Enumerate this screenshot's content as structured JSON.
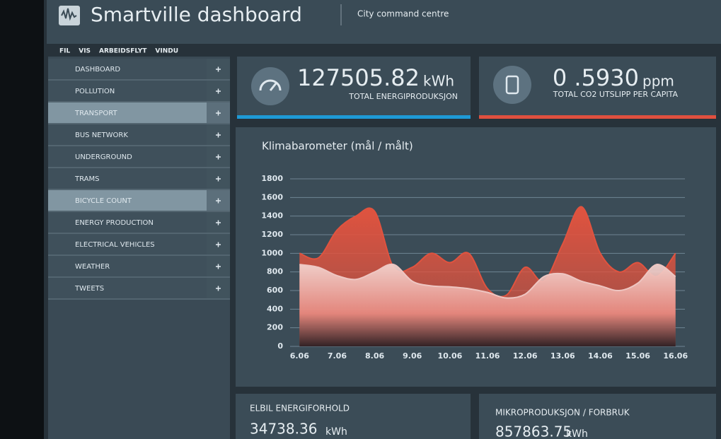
{
  "header": {
    "title": "Smartville dashboard",
    "subtitle": "City command centre"
  },
  "menu_bar": [
    "FIL",
    "VIS",
    "ARBEIDSFLYT",
    "VINDU"
  ],
  "sidebar": {
    "items": [
      "DASHBOARD",
      "POLLUTION",
      "TRANSPORT",
      "BUS NETWORK",
      "UNDERGROUND",
      "TRAMS",
      "BICYCLE COUNT",
      "ENERGY PRODUCTION",
      "ELECTRICAL VEHICLES",
      "WEATHER",
      "TWEETS"
    ]
  },
  "kpis": [
    {
      "value": "127505.82",
      "unit": "kWh",
      "label": "TOTAL ENERGIPRODUKSJON"
    },
    {
      "value": "0 .5930",
      "unit": "ppm",
      "label": "TOTAL CO2 UTSLIPP PER CAPITA"
    }
  ],
  "bottom_cards": [
    {
      "label": "ELBIL ENERGIFORHOLD",
      "value": "34738.36",
      "unit": "kWh"
    },
    {
      "label": "MIKROPRODUKSJON / FORBRUK",
      "value": "857863.75",
      "unit": "kWh"
    }
  ],
  "chart_data": {
    "type": "area",
    "title": "Klimabarometer (mål / målt)",
    "categories": [
      "6.06",
      null,
      "7.06",
      null,
      "8.06",
      null,
      "9.06",
      null,
      "10.06",
      null,
      "11.06",
      null,
      "12.06",
      null,
      "13.06",
      null,
      "14.06",
      null,
      "15.06",
      null,
      "16.06"
    ],
    "series": [
      {
        "color": "#e0533f",
        "values": [
          1000,
          950,
          1250,
          1400,
          1450,
          850,
          850,
          1000,
          900,
          1000,
          620,
          550,
          850,
          700,
          1100,
          1500,
          1000,
          800,
          900,
          750,
          1000
        ]
      },
      {
        "color": "#eec6c2",
        "values": [
          880,
          850,
          760,
          720,
          800,
          880,
          700,
          650,
          640,
          620,
          580,
          520,
          560,
          750,
          780,
          700,
          650,
          600,
          680,
          880,
          750
        ]
      }
    ],
    "ylim": [
      0,
      1800
    ],
    "yticks": [
      0,
      200,
      400,
      600,
      800,
      1000,
      1200,
      1400,
      1600,
      1800
    ],
    "grid": true
  }
}
